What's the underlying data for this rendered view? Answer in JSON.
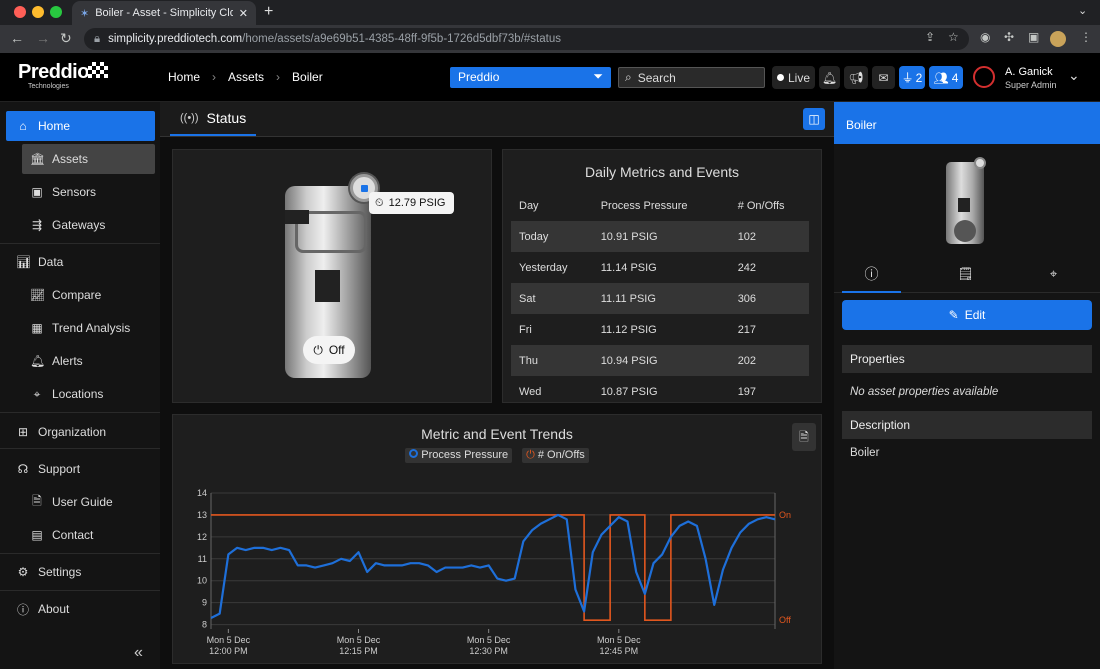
{
  "browser": {
    "tab_title": "Boiler - Asset - Simplicity Clou",
    "url_host": "simplicity.preddiotech.com",
    "url_path": "/home/assets/a9e69b51-4385-48ff-9f5b-1726d5dbf73b/#status"
  },
  "header": {
    "logo_main": "Preddio",
    "logo_sub": "Technologies",
    "breadcrumb": [
      "Home",
      "Assets",
      "Boiler"
    ],
    "filter_value": "Preddio",
    "search_placeholder": "Search",
    "live_label": "Live",
    "plug_count": "2",
    "people_count": "4",
    "user_name": "A. Ganick",
    "user_role": "Super Admin"
  },
  "sidebar": {
    "home": "Home",
    "assets": "Assets",
    "sensors": "Sensors",
    "gateways": "Gateways",
    "data": "Data",
    "compare": "Compare",
    "trend": "Trend Analysis",
    "alerts": "Alerts",
    "locations": "Locations",
    "organization": "Organization",
    "support": "Support",
    "guide": "User Guide",
    "contact": "Contact",
    "settings": "Settings",
    "about": "About"
  },
  "status": {
    "tab_label": "Status",
    "pressure_badge": "12.79 PSIG",
    "switch_label": "Off"
  },
  "metrics": {
    "title": "Daily Metrics and Events",
    "columns": [
      "Day",
      "Process Pressure",
      "# On/Offs"
    ],
    "rows": [
      [
        "Today",
        "10.91 PSIG",
        "102"
      ],
      [
        "Yesterday",
        "11.14 PSIG",
        "242"
      ],
      [
        "Sat",
        "11.11 PSIG",
        "306"
      ],
      [
        "Fri",
        "11.12 PSIG",
        "217"
      ],
      [
        "Thu",
        "10.94 PSIG",
        "202"
      ],
      [
        "Wed",
        "10.87 PSIG",
        "197"
      ]
    ]
  },
  "colors": {
    "accent": "#1a73e8",
    "pressure": "#1e6fd9",
    "onoff": "#e2571e"
  },
  "chart_data": {
    "type": "line",
    "title": "Metric and Event Trends",
    "series": [
      {
        "name": "Process Pressure",
        "axis": "left",
        "color": "#1e6fd9",
        "x": [
          0,
          1,
          2,
          3,
          4,
          5,
          6,
          7,
          8,
          9,
          10,
          11,
          12,
          13,
          14,
          15,
          16,
          17,
          18,
          19,
          20,
          21,
          22,
          23,
          24,
          25,
          26,
          27,
          28,
          29,
          30,
          31,
          32,
          33,
          34,
          35,
          36,
          37,
          38,
          39,
          40,
          41,
          42,
          43,
          44,
          45,
          46,
          47,
          48,
          49,
          50,
          51,
          52,
          53,
          54,
          55,
          56,
          57,
          58,
          59,
          60,
          61,
          62,
          63,
          64,
          65
        ],
        "y": [
          8.3,
          8.5,
          11.2,
          11.5,
          11.4,
          11.5,
          11.5,
          11.4,
          11.5,
          11.4,
          10.7,
          10.7,
          10.6,
          10.7,
          10.8,
          11.0,
          10.9,
          11.3,
          10.4,
          10.8,
          10.7,
          10.7,
          10.7,
          10.8,
          10.8,
          10.7,
          10.4,
          10.6,
          10.6,
          10.6,
          10.7,
          10.6,
          10.7,
          10.1,
          10.0,
          10.1,
          11.8,
          12.3,
          12.6,
          12.8,
          13.0,
          12.8,
          9.6,
          8.6,
          11.3,
          12.1,
          12.5,
          12.9,
          12.7,
          10.4,
          9.4,
          10.8,
          11.2,
          12.0,
          12.5,
          12.7,
          12.5,
          11.0,
          8.9,
          10.5,
          11.5,
          12.2,
          12.6,
          12.8,
          12.9,
          12.8
        ]
      },
      {
        "name": "# On/Offs",
        "axis": "right",
        "color": "#e2571e",
        "x": [
          0,
          43,
          43,
          46,
          46,
          50,
          50,
          53,
          53,
          65
        ],
        "y": [
          1,
          1,
          0,
          0,
          1,
          1,
          0,
          0,
          1,
          1
        ]
      }
    ],
    "x_ticks": [
      {
        "x": 2,
        "l1": "Mon 5 Dec",
        "l2": "12:00 PM"
      },
      {
        "x": 17,
        "l1": "Mon 5 Dec",
        "l2": "12:15 PM"
      },
      {
        "x": 32,
        "l1": "Mon 5 Dec",
        "l2": "12:30 PM"
      },
      {
        "x": 47,
        "l1": "Mon 5 Dec",
        "l2": "12:45 PM"
      }
    ],
    "x_range": [
      0,
      65
    ],
    "y_left_ticks": [
      8,
      9,
      10,
      11,
      12,
      13,
      14
    ],
    "ylim_left": [
      7.8,
      14
    ],
    "y_right_labels": {
      "on": "On",
      "off": "Off"
    },
    "grid": true,
    "legend": "top-center"
  },
  "panel": {
    "title": "Boiler",
    "edit_label": "Edit",
    "properties_label": "Properties",
    "properties_value": "No asset properties available",
    "description_label": "Description",
    "description_value": "Boiler"
  }
}
